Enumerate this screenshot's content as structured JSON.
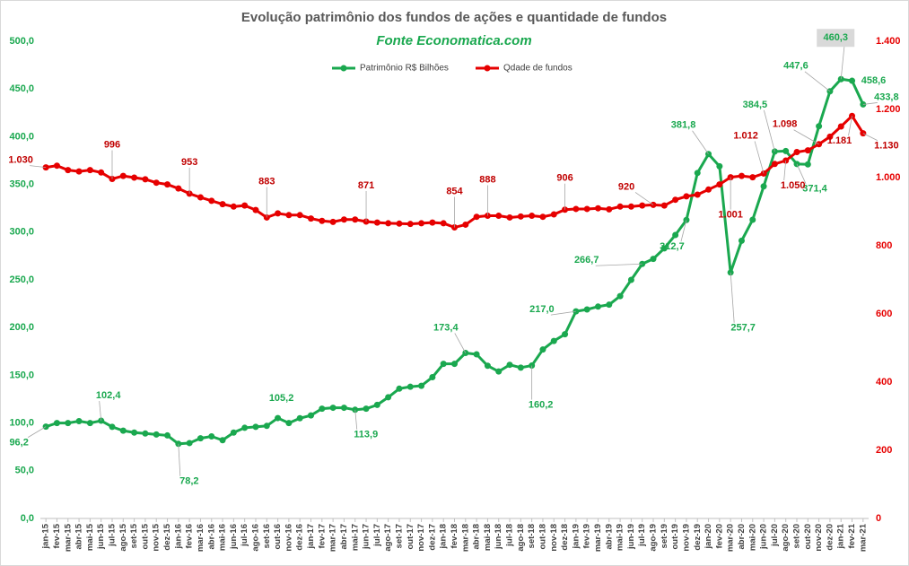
{
  "chart_data": {
    "type": "line",
    "title": "Evolução patrimônio dos fundos de ações e quantidade de fundos",
    "subtitle": "Fonte Economatica.com",
    "categories": [
      "jan-15",
      "fev-15",
      "mar-15",
      "abr-15",
      "mai-15",
      "jun-15",
      "jul-15",
      "ago-15",
      "set-15",
      "out-15",
      "nov-15",
      "dez-15",
      "jan-16",
      "fev-16",
      "mar-16",
      "abr-16",
      "mai-16",
      "jun-16",
      "jul-16",
      "ago-16",
      "set-16",
      "out-16",
      "nov-16",
      "dez-16",
      "jan-17",
      "fev-17",
      "mar-17",
      "abr-17",
      "mai-17",
      "jun-17",
      "jul-17",
      "ago-17",
      "set-17",
      "out-17",
      "nov-17",
      "dez-17",
      "jan-18",
      "fev-18",
      "mar-18",
      "abr-18",
      "mai-18",
      "jun-18",
      "jul-18",
      "ago-18",
      "set-18",
      "out-18",
      "nov-18",
      "dez-18",
      "jan-19",
      "fev-19",
      "mar-19",
      "abr-19",
      "mai-19",
      "jun-19",
      "jul-19",
      "ago-19",
      "set-19",
      "out-19",
      "nov-19",
      "dez-19",
      "jan-20",
      "fev-20",
      "mar-20",
      "abr-20",
      "mai-20",
      "jun-20",
      "jul-20",
      "ago-20",
      "set-20",
      "out-20",
      "nov-20",
      "dez-20",
      "jan-21",
      "fev-21",
      "mar-21"
    ],
    "series": [
      {
        "name": "Patrimônio R$ Bilhões",
        "color": "#1aa84f",
        "axis": "y",
        "values": [
          96.2,
          100,
          100,
          102,
          100,
          102.4,
          96,
          92,
          90,
          89,
          88,
          87,
          78.2,
          79,
          84,
          86,
          82,
          90,
          95,
          96,
          97,
          105.2,
          100,
          105,
          108,
          115,
          116,
          116,
          113.9,
          115,
          119,
          127,
          136,
          138,
          139,
          148,
          162,
          162,
          173.4,
          172,
          160,
          154,
          161,
          158,
          160.2,
          177,
          186,
          193,
          217,
          219,
          222,
          224,
          233,
          250,
          266.7,
          272,
          283,
          297,
          312.7,
          362,
          381.8,
          369,
          257.7,
          291,
          313,
          348,
          384.5,
          385,
          371.4,
          371,
          411,
          447.6,
          460.3,
          458.6,
          433.8
        ],
        "value_labels": [
          "96,2",
          null,
          null,
          null,
          null,
          "102,4",
          null,
          null,
          null,
          null,
          null,
          null,
          "78,2",
          null,
          null,
          null,
          null,
          null,
          null,
          null,
          null,
          "105,2",
          null,
          null,
          null,
          null,
          null,
          null,
          "113,9",
          null,
          null,
          null,
          null,
          null,
          null,
          null,
          null,
          null,
          "173,4",
          null,
          null,
          null,
          null,
          null,
          "160,2",
          null,
          null,
          null,
          "217,0",
          null,
          null,
          null,
          null,
          null,
          "266,7",
          null,
          null,
          null,
          "312,7",
          null,
          "381,8",
          null,
          "257,7",
          null,
          null,
          null,
          "384,5",
          null,
          "371,4",
          null,
          null,
          "447,6",
          "460,3",
          "458,6",
          "433,8"
        ]
      },
      {
        "name": "Qdade de fundos",
        "color": "#e60000",
        "axis": "y2",
        "values": [
          1030,
          1035,
          1022,
          1018,
          1022,
          1015,
          996,
          1005,
          1000,
          995,
          985,
          980,
          968,
          953,
          942,
          932,
          922,
          915,
          918,
          905,
          883,
          895,
          890,
          890,
          880,
          873,
          870,
          877,
          877,
          871,
          868,
          866,
          865,
          864,
          866,
          868,
          866,
          854,
          862,
          885,
          888,
          888,
          883,
          886,
          888,
          885,
          892,
          906,
          908,
          908,
          910,
          907,
          915,
          915,
          918,
          920,
          918,
          935,
          945,
          950,
          965,
          980,
          1001,
          1005,
          1001,
          1012,
          1040,
          1050,
          1075,
          1080,
          1098,
          1120,
          1150,
          1181,
          1130
        ],
        "value_labels": [
          "1.030",
          null,
          null,
          null,
          null,
          null,
          "996",
          null,
          null,
          null,
          null,
          null,
          null,
          "953",
          null,
          null,
          null,
          null,
          null,
          null,
          "883",
          null,
          null,
          null,
          null,
          null,
          null,
          null,
          null,
          "871",
          null,
          null,
          null,
          null,
          null,
          null,
          null,
          "854",
          null,
          null,
          "888",
          null,
          null,
          null,
          null,
          null,
          null,
          "906",
          null,
          null,
          null,
          null,
          null,
          null,
          null,
          "920",
          null,
          null,
          null,
          null,
          null,
          null,
          "1.001",
          null,
          null,
          "1.012",
          null,
          "1.050",
          null,
          null,
          "1.098",
          null,
          null,
          "1.181",
          "1.130"
        ]
      }
    ],
    "ylim": [
      0,
      500
    ],
    "yticks": [
      {
        "value": 0,
        "label": "0,0"
      },
      {
        "value": 50,
        "label": "50,0"
      },
      {
        "value": 100,
        "label": "100,0"
      },
      {
        "value": 150,
        "label": "150,0"
      },
      {
        "value": 200,
        "label": "200,0"
      },
      {
        "value": 250,
        "label": "250,0"
      },
      {
        "value": 300,
        "label": "300,0"
      },
      {
        "value": 350,
        "label": "350,0"
      },
      {
        "value": 400,
        "label": "400,0"
      },
      {
        "value": 450,
        "label": "450,0"
      },
      {
        "value": 500,
        "label": "500,0"
      }
    ],
    "y2lim": [
      0,
      1400
    ],
    "y2ticks": [
      0,
      200,
      400,
      600,
      800,
      {
        "value": 1000,
        "label": "1.000"
      },
      {
        "value": 1200,
        "label": "1.200"
      },
      {
        "value": 1400,
        "label": "1.400"
      }
    ],
    "grid": false,
    "legend": "top"
  }
}
